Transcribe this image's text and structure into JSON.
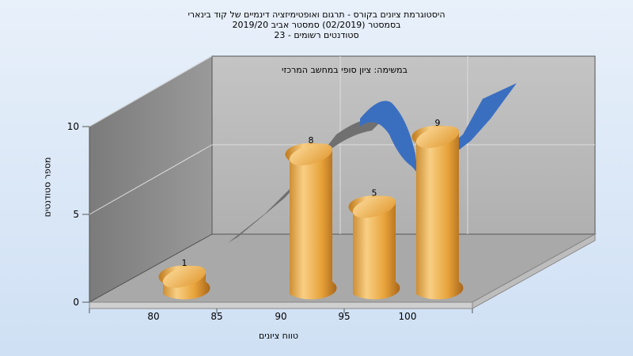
{
  "chart_data": {
    "type": "bar",
    "title_lines": [
      "היסטוגרמת ציונים בקורס - תרגום ואופטימיזציה דינמיים של קוד בינארי",
      "בסמסטר (02/2019) סמסטר אביב 2019/20",
      "סטודנטים רשומים - 23"
    ],
    "annotation": "במשימה: ציון סופי במחשב המרכזי",
    "xlabel": "טווח ציונים",
    "ylabel": "מספר סטודנטים",
    "x_tick_labels": [
      "80",
      "85",
      "90",
      "95",
      "100"
    ],
    "y_tick_labels": [
      "0",
      "5",
      "10"
    ],
    "ylim": [
      0,
      10
    ],
    "series": [
      {
        "categories": [
          "80",
          "90",
          "95",
          "100"
        ],
        "values": [
          1,
          8,
          5,
          9
        ],
        "style": "cylinder"
      }
    ],
    "trend_curve": "smoothed"
  },
  "colors": {
    "bar": "#e8a33a",
    "bar_highlight": "#f8cf84",
    "bar_shadow": "#b47418",
    "curve": "#3a6fc0",
    "curve_shadow": "#6e6e6e",
    "wall_left": "#8a8a8a",
    "wall_back": "#b9b9b9",
    "floor": "#a8a8a8"
  }
}
